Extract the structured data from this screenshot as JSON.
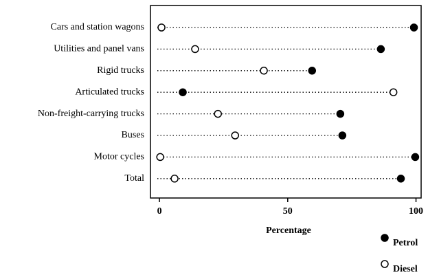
{
  "chart_data": {
    "type": "dot",
    "categories": [
      "Cars and station wagons",
      "Utilities and panel vans",
      "Rigid trucks",
      "Articulated trucks",
      "Non-freight-carrying trucks",
      "Buses",
      "Motor cycles",
      "Total"
    ],
    "series": [
      {
        "name": "Petrol",
        "color": "#000000",
        "values": [
          99.2,
          86.3,
          59.5,
          9.1,
          70.5,
          71.3,
          99.7,
          94.1
        ]
      },
      {
        "name": "Diesel",
        "color": "#ffffff",
        "values": [
          0.8,
          13.9,
          40.7,
          91.2,
          22.8,
          29.5,
          0.3,
          5.9
        ]
      }
    ],
    "xlabel": "Percentage",
    "xlim": [
      -3.5,
      102
    ],
    "xticks": [
      0,
      50,
      100
    ],
    "legend": "bottom-right"
  }
}
